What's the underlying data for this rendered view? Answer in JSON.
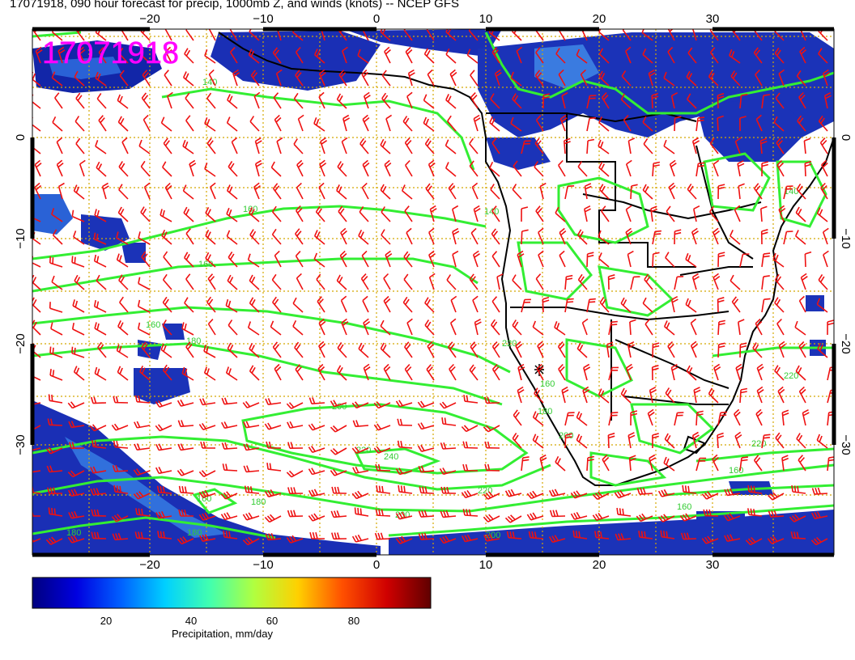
{
  "title": "17071918, 090 hour forecast for precip, 1000mb Z, and winds (knots) -- NCEP GFS",
  "stamp": "17071918",
  "map": {
    "lon_ticks_top": [
      "−20",
      "−10",
      "0",
      "10",
      "20",
      "30"
    ],
    "lon_ticks_bottom": [
      "−20",
      "−10",
      "0",
      "10",
      "20",
      "30"
    ],
    "lat_ticks_left": [
      "0",
      "−10",
      "−20",
      "−30"
    ],
    "lat_ticks_right": [
      "0",
      "−10",
      "−20",
      "−30"
    ],
    "contour_labels": [
      "140",
      "160",
      "160",
      "140",
      "160",
      "180",
      "200",
      "220",
      "240",
      "220",
      "200",
      "180",
      "160",
      "160",
      "180",
      "200",
      "220",
      "180",
      "180",
      "200",
      "220",
      "220",
      "140",
      "160",
      "160"
    ],
    "colors": {
      "contour": "#33ee33",
      "wind_barb": "#ee1111",
      "coast": "#000000",
      "stamp": "#ff00ff",
      "graticule": "#d4a800"
    }
  },
  "colorbar": {
    "label": "Precipitation, mm/day",
    "ticks": [
      "20",
      "40",
      "60",
      "80"
    ],
    "range": [
      0,
      100
    ],
    "stops": [
      "#00007f",
      "#0000e0",
      "#0060ff",
      "#00d0ff",
      "#40ffb0",
      "#b0ff40",
      "#ffd000",
      "#ff5000",
      "#d00000",
      "#600000"
    ]
  }
}
